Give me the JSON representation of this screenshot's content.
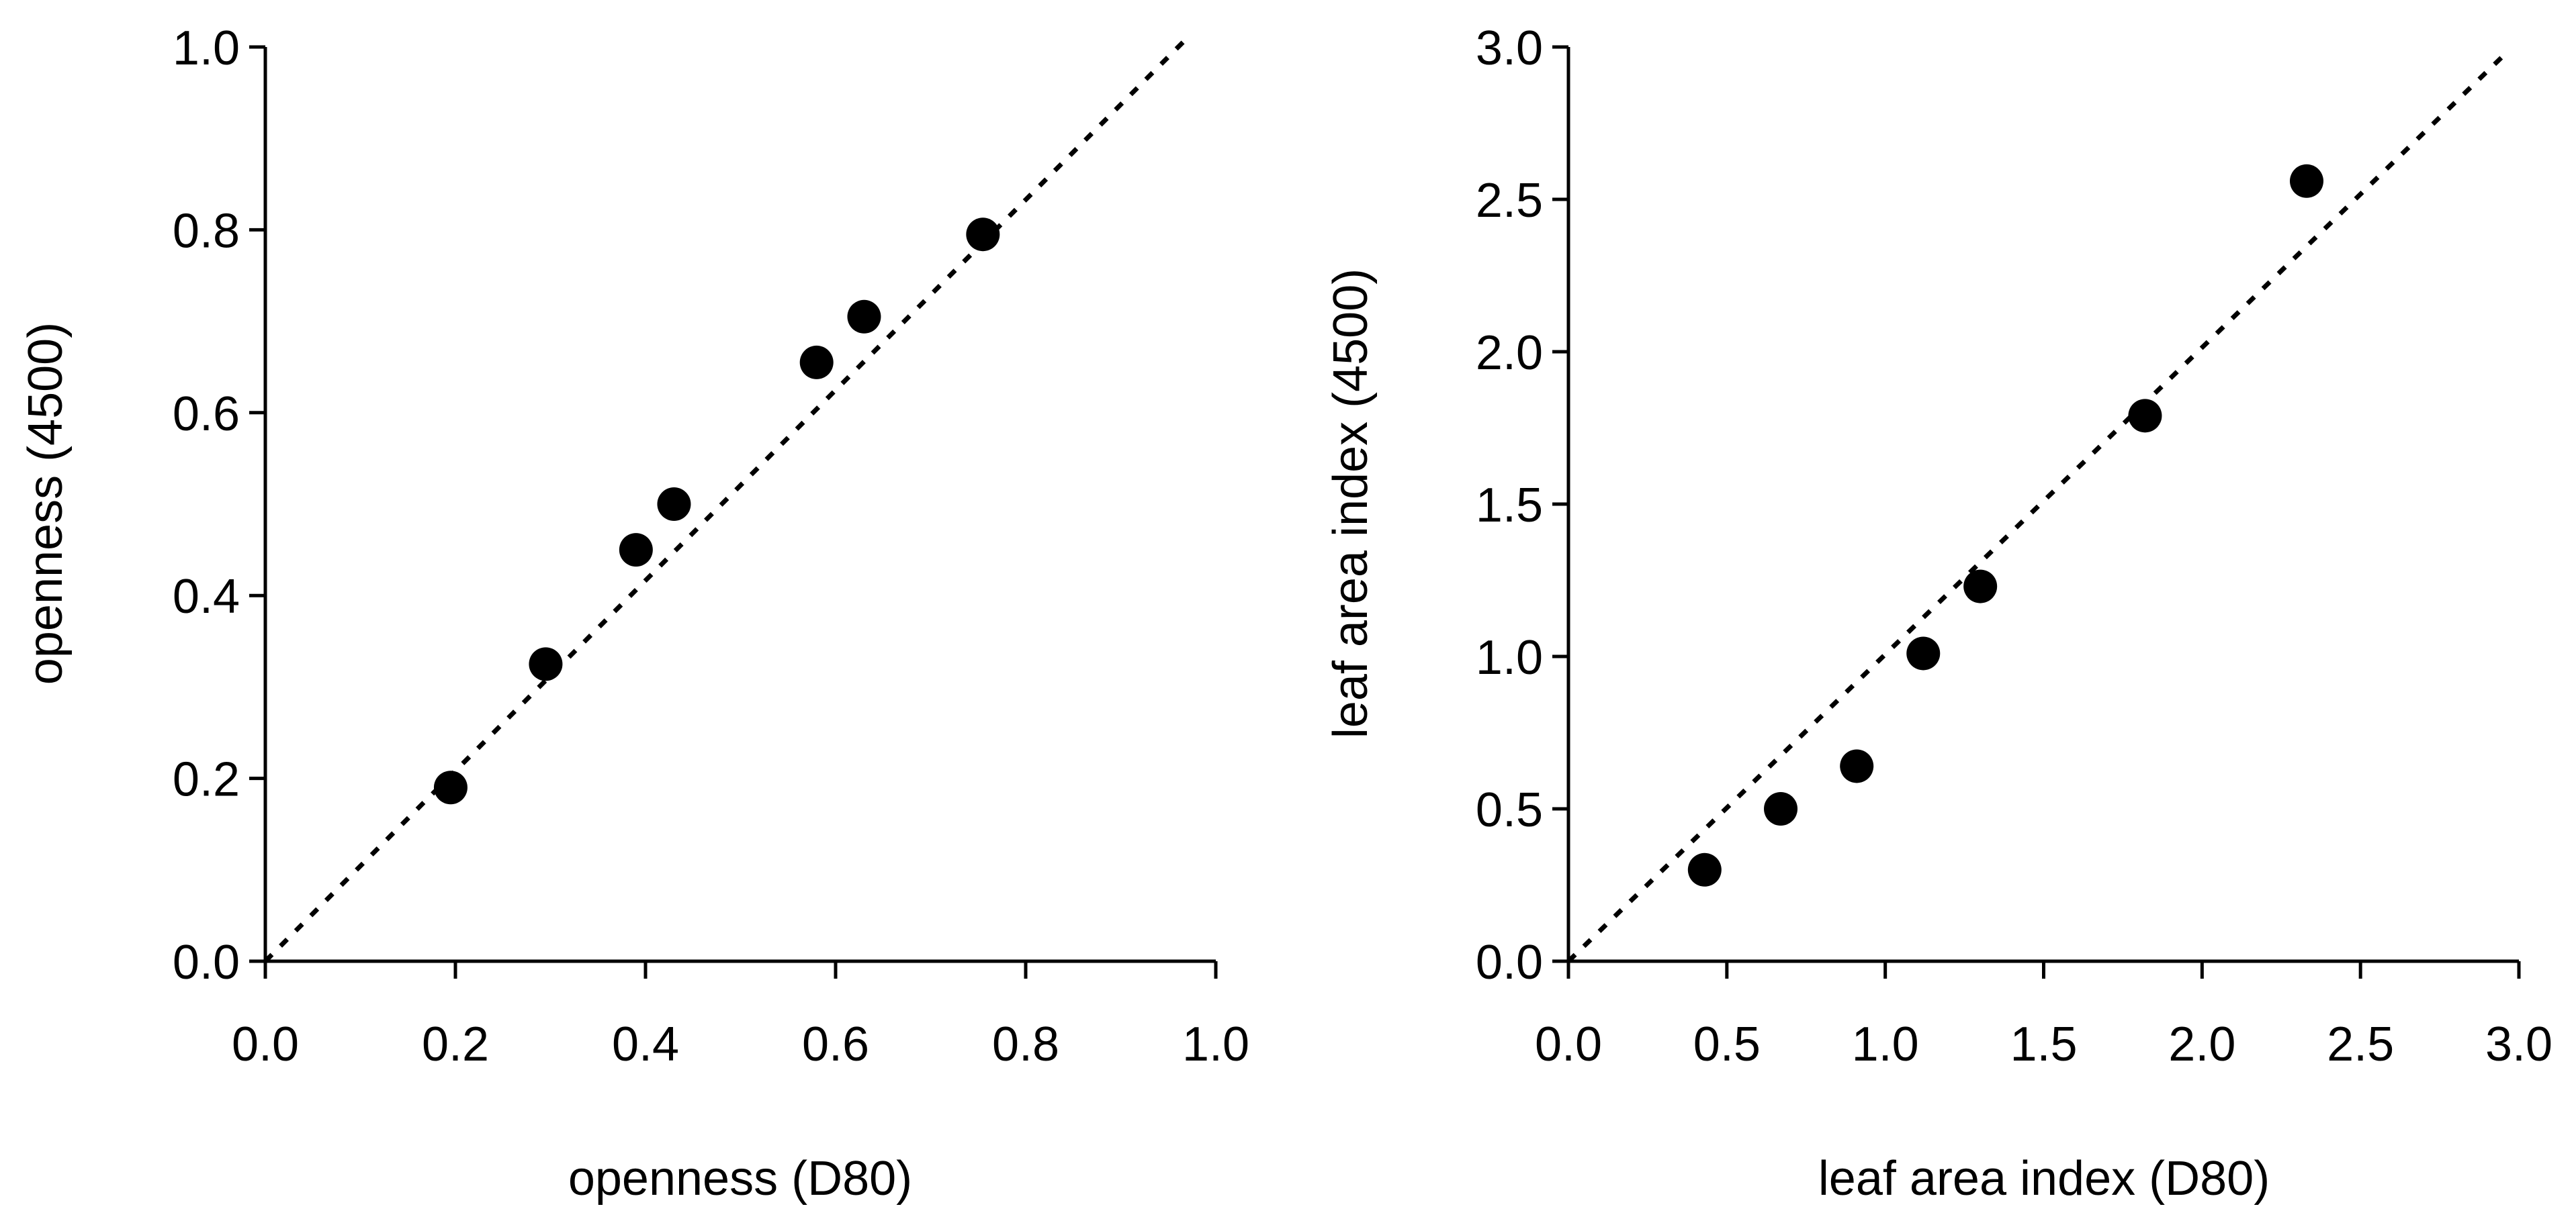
{
  "chart_data": [
    {
      "type": "scatter",
      "xlabel": "openness (D80)",
      "ylabel": "openness (4500)",
      "xlim": [
        0.0,
        1.0
      ],
      "ylim": [
        0.0,
        1.0
      ],
      "xticks": [
        "0.0",
        "0.2",
        "0.4",
        "0.6",
        "0.8",
        "1.0"
      ],
      "yticks": [
        "0.0",
        "0.2",
        "0.4",
        "0.6",
        "0.8",
        "1.0"
      ],
      "reference_line": "1:1 dotted",
      "grid": false,
      "series": [
        {
          "name": "openness",
          "x": [
            0.195,
            0.295,
            0.39,
            0.43,
            0.58,
            0.63,
            0.755
          ],
          "y": [
            0.19,
            0.325,
            0.45,
            0.5,
            0.655,
            0.705,
            0.795
          ]
        }
      ]
    },
    {
      "type": "scatter",
      "xlabel": "leaf area index (D80)",
      "ylabel": "leaf area index (4500)",
      "xlim": [
        0.0,
        3.0
      ],
      "ylim": [
        0.0,
        3.0
      ],
      "xticks": [
        "0.0",
        "0.5",
        "1.0",
        "1.5",
        "2.0",
        "2.5",
        "3.0"
      ],
      "yticks": [
        "0.0",
        "0.5",
        "1.0",
        "1.5",
        "2.0",
        "2.5",
        "3.0"
      ],
      "reference_line": "1:1 dotted",
      "grid": false,
      "series": [
        {
          "name": "leaf area index",
          "x": [
            0.43,
            0.67,
            0.91,
            1.12,
            1.3,
            1.82,
            2.33
          ],
          "y": [
            0.3,
            0.5,
            0.64,
            1.01,
            1.23,
            1.79,
            2.56
          ]
        }
      ]
    }
  ]
}
